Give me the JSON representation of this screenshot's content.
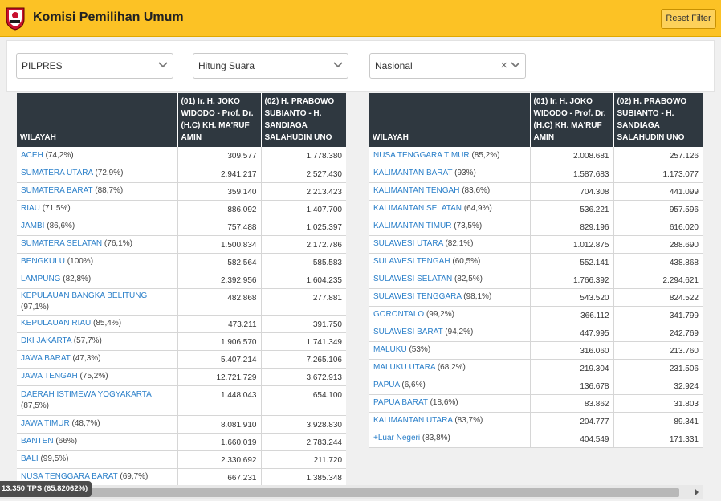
{
  "header": {
    "title": "Komisi Pemilihan Umum",
    "reset_label": "Reset Filter",
    "logo_icon": "kpu-logo-icon"
  },
  "filters": {
    "election": "PILPRES",
    "count_type": "Hitung Suara",
    "scope": "Nasional"
  },
  "columns": {
    "region": "WILAYAH",
    "candidate_01": "(01) Ir. H. JOKO WIDODO - Prof. Dr. (H.C) KH. MA'RUF AMIN",
    "candidate_02": "(02) H. PRABOWO SUBIANTO - H. SANDIAGA SALAHUDIN UNO"
  },
  "left_rows": [
    {
      "name": "ACEH",
      "pct": "(74,2%)",
      "c1": "309.577",
      "c2": "1.778.380"
    },
    {
      "name": "SUMATERA UTARA",
      "pct": "(72,9%)",
      "c1": "2.941.217",
      "c2": "2.527.430"
    },
    {
      "name": "SUMATERA BARAT",
      "pct": "(88,7%)",
      "c1": "359.140",
      "c2": "2.213.423"
    },
    {
      "name": "RIAU",
      "pct": "(71,5%)",
      "c1": "886.092",
      "c2": "1.407.700"
    },
    {
      "name": "JAMBI",
      "pct": "(86,6%)",
      "c1": "757.488",
      "c2": "1.025.397"
    },
    {
      "name": "SUMATERA SELATAN",
      "pct": "(76,1%)",
      "c1": "1.500.834",
      "c2": "2.172.786"
    },
    {
      "name": "BENGKULU",
      "pct": "(100%)",
      "c1": "582.564",
      "c2": "585.583"
    },
    {
      "name": "LAMPUNG",
      "pct": "(82,8%)",
      "c1": "2.392.956",
      "c2": "1.604.235"
    },
    {
      "name": "KEPULAUAN BANGKA BELITUNG",
      "pct": "(97,1%)",
      "c1": "482.868",
      "c2": "277.881"
    },
    {
      "name": "KEPULAUAN RIAU",
      "pct": "(85,4%)",
      "c1": "473.211",
      "c2": "391.750"
    },
    {
      "name": "DKI JAKARTA",
      "pct": "(57,7%)",
      "c1": "1.906.570",
      "c2": "1.741.349"
    },
    {
      "name": "JAWA BARAT",
      "pct": "(47,3%)",
      "c1": "5.407.214",
      "c2": "7.265.106"
    },
    {
      "name": "JAWA TENGAH",
      "pct": "(75,2%)",
      "c1": "12.721.729",
      "c2": "3.672.913"
    },
    {
      "name": "DAERAH ISTIMEWA YOGYAKARTA",
      "pct": "(87,5%)",
      "c1": "1.448.043",
      "c2": "654.100"
    },
    {
      "name": "JAWA TIMUR",
      "pct": "(48,7%)",
      "c1": "8.081.910",
      "c2": "3.928.830"
    },
    {
      "name": "BANTEN",
      "pct": "(66%)",
      "c1": "1.660.019",
      "c2": "2.783.244"
    },
    {
      "name": "BALI",
      "pct": "(99,5%)",
      "c1": "2.330.692",
      "c2": "211.720"
    },
    {
      "name": "NUSA TENGGARA BARAT",
      "pct": "(69,7%)",
      "c1": "667.231",
      "c2": "1.385.348"
    }
  ],
  "right_rows": [
    {
      "name": "NUSA TENGGARA TIMUR",
      "pct": "(85,2%)",
      "c1": "2.008.681",
      "c2": "257.126"
    },
    {
      "name": "KALIMANTAN BARAT",
      "pct": "(93%)",
      "c1": "1.587.683",
      "c2": "1.173.077"
    },
    {
      "name": "KALIMANTAN TENGAH",
      "pct": "(83,6%)",
      "c1": "704.308",
      "c2": "441.099"
    },
    {
      "name": "KALIMANTAN SELATAN",
      "pct": "(64,9%)",
      "c1": "536.221",
      "c2": "957.596"
    },
    {
      "name": "KALIMANTAN TIMUR",
      "pct": "(73,5%)",
      "c1": "829.196",
      "c2": "616.020"
    },
    {
      "name": "SULAWESI UTARA",
      "pct": "(82,1%)",
      "c1": "1.012.875",
      "c2": "288.690"
    },
    {
      "name": "SULAWESI TENGAH",
      "pct": "(60,5%)",
      "c1": "552.141",
      "c2": "438.868"
    },
    {
      "name": "SULAWESI SELATAN",
      "pct": "(82,5%)",
      "c1": "1.766.392",
      "c2": "2.294.621"
    },
    {
      "name": "SULAWESI TENGGARA",
      "pct": "(98,1%)",
      "c1": "543.520",
      "c2": "824.522"
    },
    {
      "name": "GORONTALO",
      "pct": "(99,2%)",
      "c1": "366.112",
      "c2": "341.799"
    },
    {
      "name": "SULAWESI BARAT",
      "pct": "(94,2%)",
      "c1": "447.995",
      "c2": "242.769"
    },
    {
      "name": "MALUKU",
      "pct": "(53%)",
      "c1": "316.060",
      "c2": "213.760"
    },
    {
      "name": "MALUKU UTARA",
      "pct": "(68,2%)",
      "c1": "219.304",
      "c2": "231.506"
    },
    {
      "name": "PAPUA",
      "pct": "(6,6%)",
      "c1": "136.678",
      "c2": "32.924"
    },
    {
      "name": "PAPUA BARAT",
      "pct": "(18,6%)",
      "c1": "83.862",
      "c2": "31.803"
    },
    {
      "name": "KALIMANTAN UTARA",
      "pct": "(83,7%)",
      "c1": "204.777",
      "c2": "89.341"
    },
    {
      "name": "+Luar Negeri",
      "pct": "(83,8%)",
      "c1": "404.549",
      "c2": "171.331"
    }
  ],
  "footer": {
    "tps_status": "13.350 TPS (65.82062%)"
  },
  "colors": {
    "header_bg": "#fcc225",
    "table_head_bg": "#2f3840",
    "link": "#2a7fc9"
  }
}
